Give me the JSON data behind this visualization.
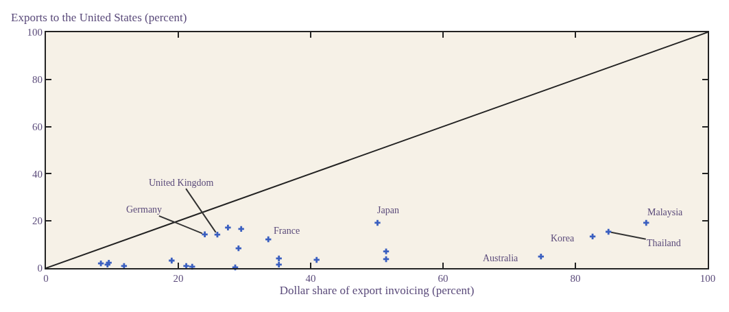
{
  "chart_data": {
    "type": "scatter",
    "ylabel": "Exports to the United States (percent)",
    "xlabel": "Dollar share of export invoicing (percent)",
    "xlim": [
      0,
      100
    ],
    "ylim": [
      0,
      100
    ],
    "xticks": [
      0,
      20,
      40,
      60,
      80,
      100
    ],
    "yticks": [
      0,
      20,
      40,
      60,
      80,
      100
    ],
    "marker": "cross",
    "series": [
      {
        "color": "#3a5fc0",
        "x": [
          8.3,
          9.3,
          9.5,
          11.8,
          19.0,
          21.2,
          22.1,
          24.0,
          25.9,
          27.5,
          29.5,
          29.1,
          28.6,
          33.6,
          35.2,
          35.2,
          40.9,
          50.1,
          51.4,
          51.4,
          74.8,
          82.6,
          85.0,
          90.7
        ],
        "values": [
          2.0,
          1.5,
          2.3,
          0.9,
          3.2,
          0.9,
          0.6,
          14.3,
          14.2,
          17.2,
          16.6,
          8.4,
          0.3,
          12.2,
          4.1,
          1.5,
          3.5,
          19.2,
          7.1,
          3.8,
          4.9,
          13.4,
          15.4,
          19.2
        ]
      },
      {
        "type": "line",
        "color": "#222222",
        "x": [
          0,
          100
        ],
        "values": [
          0,
          100
        ],
        "marker": "none"
      }
    ],
    "annotations": [
      {
        "text": "United Kingdom",
        "x": 25.9,
        "y": 14.2
      },
      {
        "text": "Germany",
        "x": 24.0,
        "y": 14.3
      },
      {
        "text": "France",
        "x": 33.6,
        "y": 12.2
      },
      {
        "text": "Japan",
        "x": 50.1,
        "y": 19.2
      },
      {
        "text": "Australia",
        "x": 74.8,
        "y": 4.9
      },
      {
        "text": "Korea",
        "x": 82.6,
        "y": 13.4
      },
      {
        "text": "Thailand",
        "x": 85.0,
        "y": 15.4
      },
      {
        "text": "Malaysia",
        "x": 90.7,
        "y": 19.2
      }
    ]
  }
}
